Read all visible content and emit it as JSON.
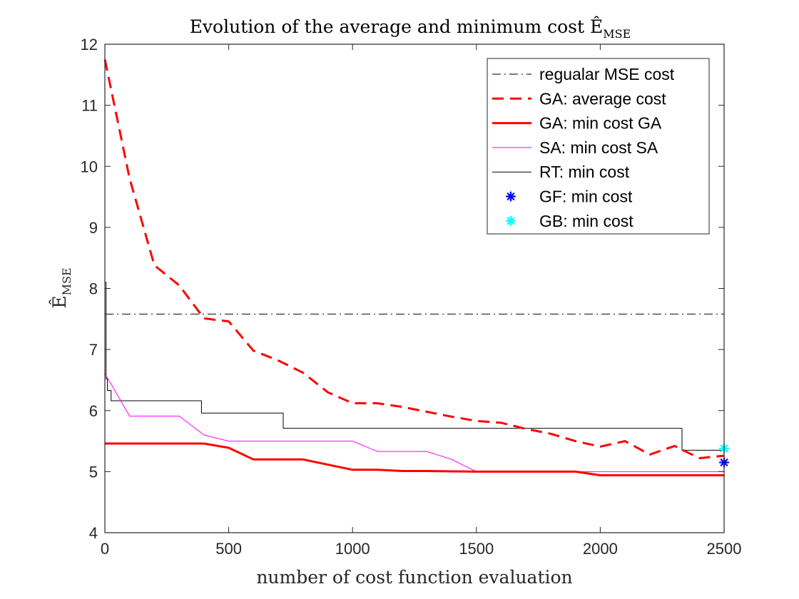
{
  "chart_data": {
    "type": "line",
    "title_main": "Evolution of the average and minimum cost Ê",
    "title_sub": "MSE",
    "xlabel": "number of cost function evaluation",
    "ylabel_main": "Ê",
    "ylabel_sub": "MSE",
    "xlim": [
      0,
      2500
    ],
    "ylim": [
      4,
      12
    ],
    "xticks": [
      0,
      500,
      1000,
      1500,
      2000,
      2500
    ],
    "xtick_labels": [
      "0",
      "500",
      "1000",
      "1500",
      "2000",
      "2500"
    ],
    "yticks": [
      4,
      5,
      6,
      7,
      8,
      9,
      10,
      11,
      12
    ],
    "ytick_labels": [
      "4",
      "5",
      "6",
      "7",
      "8",
      "9",
      "10",
      "11",
      "12"
    ],
    "grid": false,
    "legend_position": "top-right",
    "series": [
      {
        "name": "regualar MSE cost",
        "style": "dash-dot",
        "color": "#333333",
        "x": [
          0,
          2500
        ],
        "y": [
          7.58,
          7.58
        ]
      },
      {
        "name": "GA: average cost",
        "style": "dashed",
        "color": "#ff0000",
        "x": [
          0,
          100,
          200,
          300,
          400,
          500,
          600,
          700,
          800,
          900,
          1000,
          1100,
          1200,
          1300,
          1400,
          1500,
          1600,
          1700,
          1800,
          1900,
          2000,
          2100,
          2200,
          2300,
          2400,
          2500
        ],
        "y": [
          11.75,
          9.8,
          8.38,
          8.05,
          7.51,
          7.46,
          6.98,
          6.82,
          6.62,
          6.3,
          6.12,
          6.12,
          6.06,
          5.98,
          5.9,
          5.83,
          5.8,
          5.7,
          5.62,
          5.5,
          5.41,
          5.5,
          5.28,
          5.42,
          5.22,
          5.26
        ]
      },
      {
        "name": "GA: min cost GA",
        "style": "solid-thick",
        "color": "#ff0000",
        "x": [
          0,
          400,
          500,
          600,
          800,
          1000,
          1100,
          1200,
          1300,
          1500,
          1900,
          2000,
          2500
        ],
        "y": [
          5.46,
          5.46,
          5.39,
          5.2,
          5.2,
          5.03,
          5.03,
          5.01,
          5.01,
          5.0,
          5.0,
          4.94,
          4.94
        ]
      },
      {
        "name": "SA: min cost SA",
        "style": "solid-thin",
        "color": "#ff00ff",
        "x": [
          0,
          30,
          100,
          300,
          400,
          500,
          1000,
          1100,
          1300,
          1400,
          1500,
          2500
        ],
        "y": [
          6.6,
          6.4,
          5.91,
          5.91,
          5.6,
          5.5,
          5.5,
          5.33,
          5.33,
          5.2,
          5.0,
          5.0
        ]
      },
      {
        "name": "RT: min cost",
        "style": "step-thin",
        "color": "#000000",
        "x": [
          0,
          5,
          10,
          25,
          390,
          720,
          2330,
          2500
        ],
        "y": [
          8.1,
          6.52,
          6.33,
          6.16,
          5.96,
          5.71,
          5.35,
          5.35
        ]
      },
      {
        "name": "GF: min cost",
        "style": "marker-asterisk",
        "color": "#0000ff",
        "x": [
          2500
        ],
        "y": [
          5.15
        ]
      },
      {
        "name": "GB: min cost",
        "style": "marker-asterisk",
        "color": "#00ffff",
        "x": [
          2500
        ],
        "y": [
          5.38
        ]
      }
    ]
  }
}
